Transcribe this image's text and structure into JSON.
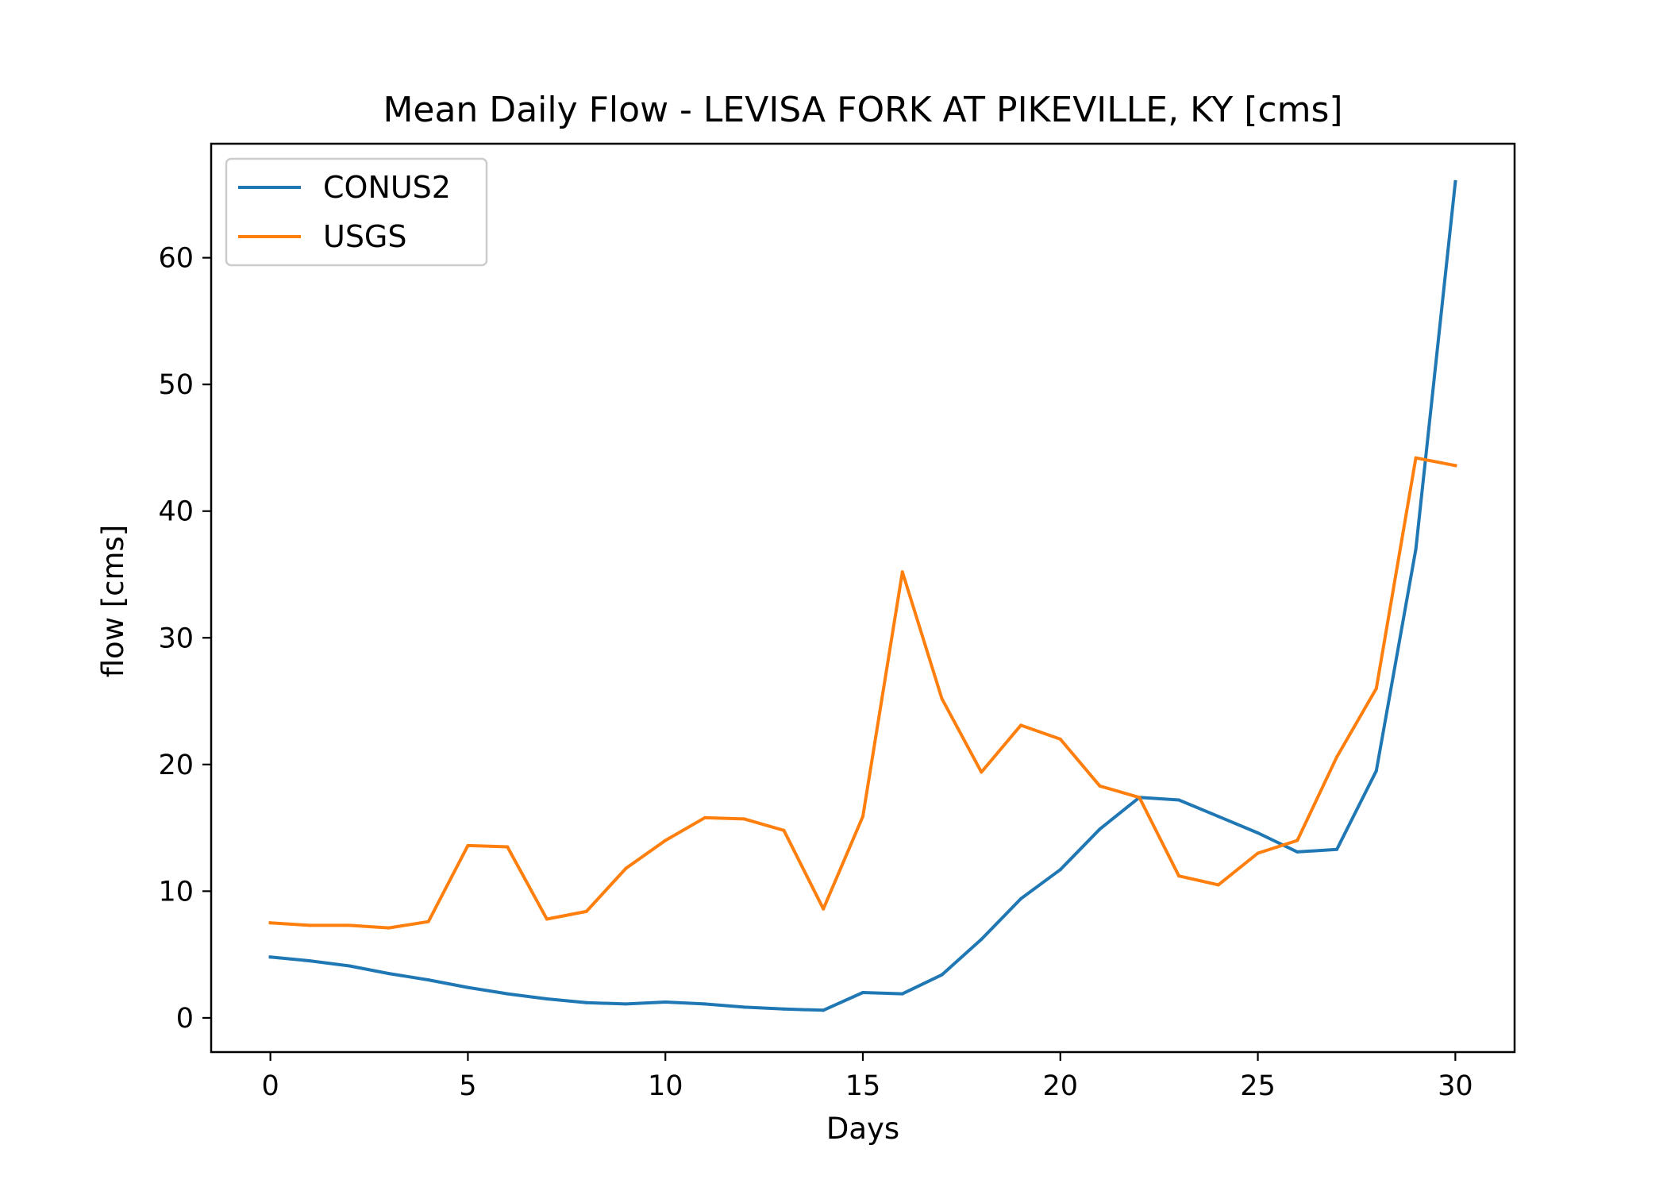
{
  "chart_data": {
    "type": "line",
    "title": "Mean Daily Flow - LEVISA FORK AT PIKEVILLE, KY [cms]",
    "xlabel": "Days",
    "ylabel": "flow [cms]",
    "xlim": [
      -1.5,
      31.5
    ],
    "ylim": [
      -2.7,
      69.0
    ],
    "xticks": [
      0,
      5,
      10,
      15,
      20,
      25,
      30
    ],
    "yticks": [
      0,
      10,
      20,
      30,
      40,
      50,
      60
    ],
    "grid": false,
    "legend_position": "top-left",
    "x": [
      0,
      1,
      2,
      3,
      4,
      5,
      6,
      7,
      8,
      9,
      10,
      11,
      12,
      13,
      14,
      15,
      16,
      17,
      18,
      19,
      20,
      21,
      22,
      23,
      24,
      25,
      26,
      27,
      28,
      29,
      30
    ],
    "series": [
      {
        "name": "CONUS2",
        "color": "#1f77b4",
        "values": [
          4.8,
          4.5,
          4.1,
          3.5,
          3.0,
          2.4,
          1.9,
          1.5,
          1.2,
          1.1,
          1.25,
          1.1,
          0.85,
          0.7,
          0.6,
          2.0,
          1.9,
          3.4,
          6.2,
          9.4,
          11.7,
          14.9,
          17.4,
          17.2,
          15.9,
          14.6,
          13.1,
          13.3,
          19.5,
          37.0,
          66.0
        ]
      },
      {
        "name": "USGS",
        "color": "#ff7f0e",
        "values": [
          7.5,
          7.3,
          7.3,
          7.1,
          7.6,
          13.6,
          13.5,
          7.8,
          8.4,
          11.8,
          14.0,
          15.8,
          15.7,
          14.8,
          8.6,
          15.9,
          35.2,
          25.2,
          19.4,
          23.1,
          22.0,
          18.3,
          17.4,
          11.2,
          10.5,
          13.0,
          14.0,
          20.6,
          26.0,
          44.2,
          43.6
        ]
      }
    ]
  }
}
